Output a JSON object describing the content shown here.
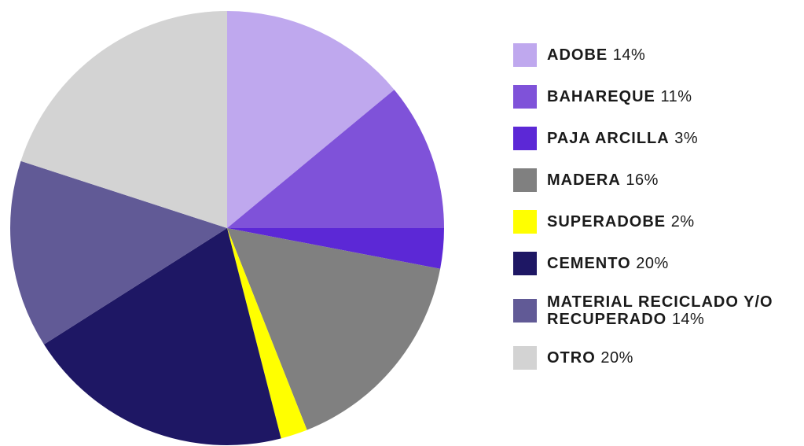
{
  "chart_data": {
    "type": "pie",
    "categories": [
      "ADOBE",
      "BAHAREQUE",
      "PAJA ARCILLA",
      "MADERA",
      "SUPERADOBE",
      "CEMENTO",
      "MATERIAL RECICLADO Y/O RECUPERADO",
      "OTRO"
    ],
    "values": [
      14,
      11,
      3,
      16,
      2,
      20,
      14,
      20
    ],
    "value_labels": [
      "14%",
      "11%",
      "3%",
      "16%",
      "2%",
      "20%",
      "14%",
      "20%"
    ],
    "colors": [
      "#bfa8ee",
      "#7f52d9",
      "#5c28d6",
      "#808080",
      "#ffff00",
      "#1e1764",
      "#615a96",
      "#d3d3d3"
    ],
    "legend": "right"
  }
}
